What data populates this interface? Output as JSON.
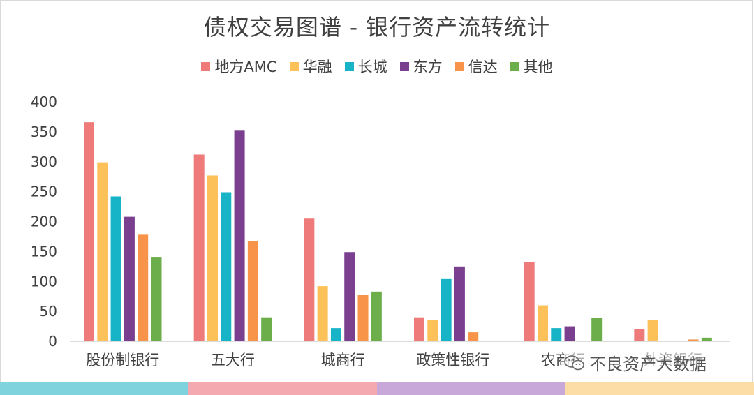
{
  "chart_data": {
    "type": "bar",
    "title": "债权交易图谱 - 银行资产流转统计",
    "categories": [
      "股份制银行",
      "五大行",
      "城商行",
      "政策性银行",
      "农商行",
      "外资银行"
    ],
    "series": [
      {
        "name": "地方AMC",
        "color": "#EF7A7A",
        "values": [
          366,
          312,
          205,
          40,
          132,
          20
        ]
      },
      {
        "name": "华融",
        "color": "#FDC15A",
        "values": [
          299,
          277,
          92,
          36,
          60,
          36
        ]
      },
      {
        "name": "长城",
        "color": "#17B4C7",
        "values": [
          242,
          249,
          22,
          104,
          22,
          0
        ]
      },
      {
        "name": "东方",
        "color": "#7A3F8E",
        "values": [
          208,
          353,
          149,
          125,
          25,
          0
        ]
      },
      {
        "name": "信达",
        "color": "#F7944A",
        "values": [
          178,
          167,
          77,
          15,
          0,
          3
        ]
      },
      {
        "name": "其他",
        "color": "#6BAE4A",
        "values": [
          141,
          40,
          83,
          0,
          39,
          6
        ]
      }
    ],
    "ylim": [
      0,
      400
    ],
    "yticks": [
      0,
      50,
      100,
      150,
      200,
      250,
      300,
      350,
      400
    ],
    "legend_position": "top",
    "grid": false
  },
  "watermark": {
    "text": "不良资产大数据",
    "icon": "wechat-icon"
  },
  "bottom_band_colors": [
    "#7FD3DC",
    "#F4A9B0",
    "#C7A8D8",
    "#FDDDA6"
  ]
}
